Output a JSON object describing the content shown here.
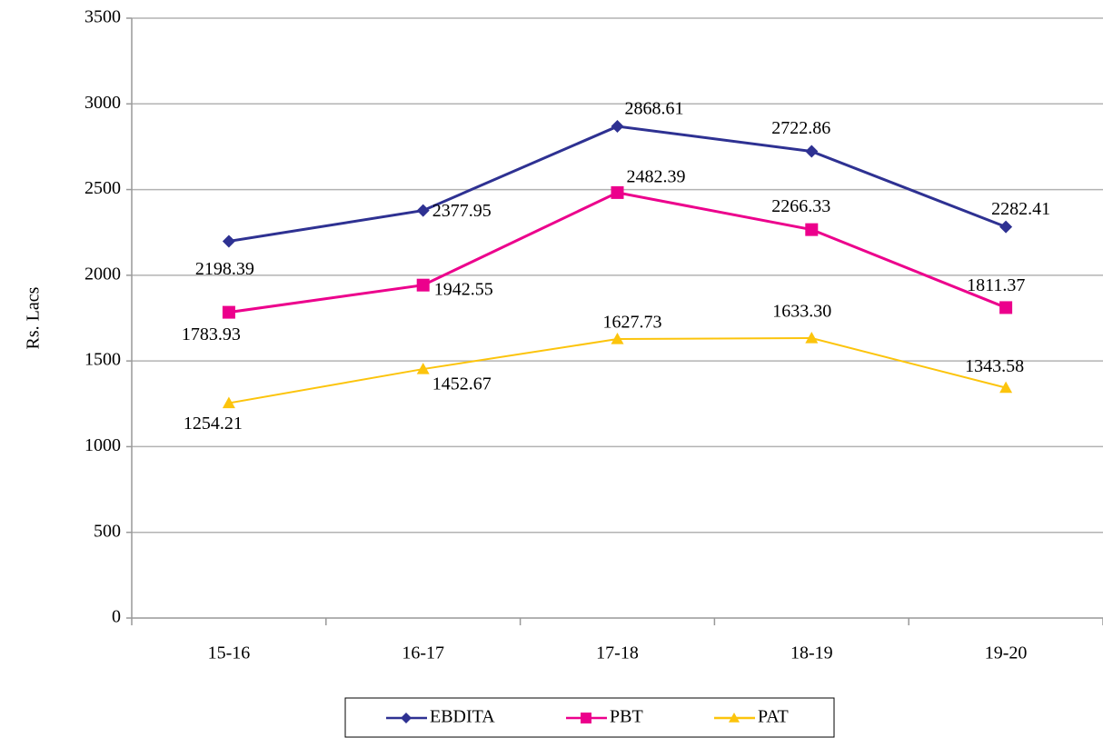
{
  "chart_data": {
    "type": "line",
    "y_label": "Rs. Lacs",
    "categories": [
      "15-16",
      "16-17",
      "17-18",
      "18-19",
      "19-20"
    ],
    "series": [
      {
        "name": "EBDITA",
        "color": "#2e3192",
        "marker": "diamond",
        "values": [
          2198.39,
          2377.95,
          2868.61,
          2722.86,
          2282.41
        ],
        "value_labels": [
          "2198.39",
          "2377.95",
          "2868.61",
          "2722.86",
          "2282.41"
        ]
      },
      {
        "name": "PBT",
        "color": "#ec008c",
        "marker": "square",
        "values": [
          1783.93,
          1942.55,
          2482.39,
          2266.33,
          1811.37
        ],
        "value_labels": [
          "1783.93",
          "1942.55",
          "2482.39",
          "2266.33",
          "1811.37"
        ]
      },
      {
        "name": "PAT",
        "color": "#fcc40c",
        "marker": "triangle",
        "values": [
          1254.21,
          1452.67,
          1627.73,
          1633.3,
          1343.58
        ],
        "value_labels": [
          "1254.21",
          "1452.67",
          "1627.73",
          "1633.30",
          "1343.58"
        ]
      }
    ],
    "ylim": [
      0,
      3500
    ],
    "yticks": [
      0,
      500,
      1000,
      1500,
      2000,
      2500,
      3000,
      3500
    ],
    "grid": true,
    "legend": "bottom"
  }
}
